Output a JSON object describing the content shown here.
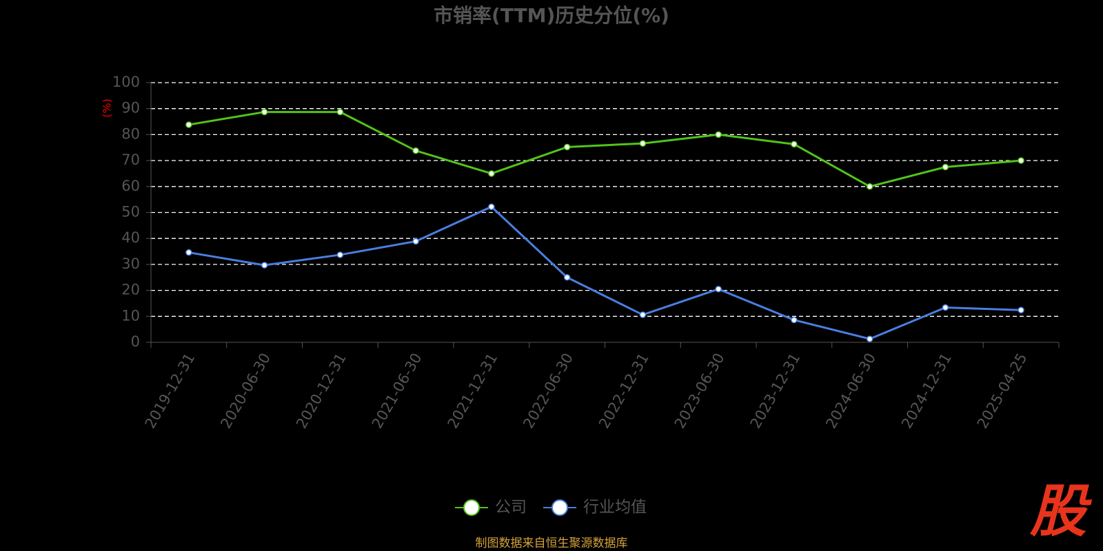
{
  "chart_data": {
    "type": "line",
    "title": "市销率(TTM)历史分位(%)",
    "y_label": "(%)",
    "categories": [
      "2019-12-31",
      "2020-06-30",
      "2020-12-31",
      "2021-06-30",
      "2021-12-31",
      "2022-06-30",
      "2022-12-31",
      "2023-06-30",
      "2023-12-31",
      "2024-06-30",
      "2024-12-31",
      "2025-04-25"
    ],
    "series": [
      {
        "name": "公司",
        "color": "#52c41a",
        "values": [
          83.8,
          88.7,
          88.7,
          73.8,
          65.0,
          75.2,
          76.6,
          80.0,
          76.3,
          60.0,
          67.5,
          70.0
        ]
      },
      {
        "name": "行业均值",
        "color": "#4a7fe0",
        "values": [
          34.6,
          29.7,
          33.7,
          38.9,
          52.2,
          25.0,
          10.6,
          20.5,
          8.6,
          1.3,
          13.4,
          12.4
        ]
      }
    ],
    "ylim": [
      0,
      100
    ],
    "yticks": [
      0,
      10,
      20,
      30,
      40,
      50,
      60,
      70,
      80,
      90,
      100
    ],
    "grid": true,
    "source": "制图数据来自恒生聚源数据库",
    "logo": "股"
  }
}
